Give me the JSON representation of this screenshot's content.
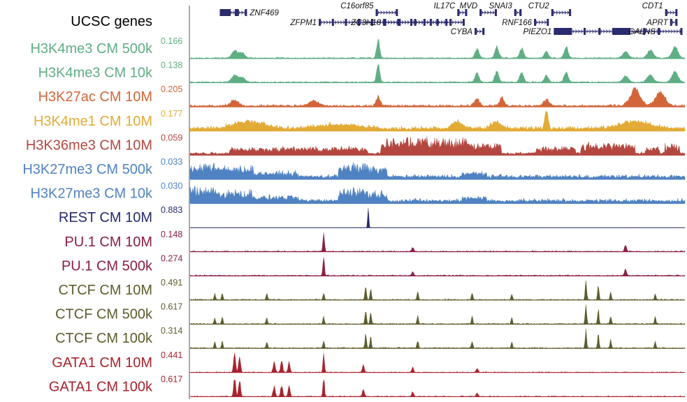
{
  "gene_track": {
    "label": "UCSC genes",
    "color": "#2a2a6e",
    "genes": [
      {
        "name": "ZNF469",
        "start": 0.06,
        "end": 0.115,
        "row": 0,
        "thick": true
      },
      {
        "name": "ZFPM1",
        "start": 0.26,
        "end": 0.555,
        "row": 1,
        "thick": false
      },
      {
        "name": "C16orf85",
        "start": 0.375,
        "end": 0.42,
        "row": 0,
        "thick": false
      },
      {
        "name": "ZC3H18",
        "start": 0.39,
        "end": 0.52,
        "row": 1,
        "thick": false
      },
      {
        "name": "IL17C",
        "start": 0.54,
        "end": 0.56,
        "row": 0,
        "thick": false
      },
      {
        "name": "CYBA",
        "start": 0.575,
        "end": 0.595,
        "row": 2,
        "thick": false
      },
      {
        "name": "MVD",
        "start": 0.585,
        "end": 0.62,
        "row": 0,
        "thick": false
      },
      {
        "name": "SNAI3",
        "start": 0.655,
        "end": 0.67,
        "row": 0,
        "thick": false
      },
      {
        "name": "RNF166",
        "start": 0.695,
        "end": 0.725,
        "row": 1,
        "thick": false
      },
      {
        "name": "CTU2",
        "start": 0.73,
        "end": 0.77,
        "row": 0,
        "thick": false
      },
      {
        "name": "PIEZO1",
        "start": 0.735,
        "end": 0.95,
        "row": 2,
        "thick": true
      },
      {
        "name": "CDT1",
        "start": 0.96,
        "end": 0.985,
        "row": 0,
        "thick": false
      },
      {
        "name": "APRT",
        "start": 0.97,
        "end": 0.985,
        "row": 1,
        "thick": false
      },
      {
        "name": "GALNS",
        "start": 0.945,
        "end": 0.995,
        "row": 2,
        "thick": false
      }
    ]
  },
  "tracks": [
    {
      "label": "H3K4me3 CM 500k",
      "max": "0.166",
      "color": "#5fae84",
      "profile": "h3k4me3"
    },
    {
      "label": "H3K4me3 CM 10k",
      "max": "0.138",
      "color": "#5fae84",
      "profile": "h3k4me3"
    },
    {
      "label": "H3K27ac CM 10M",
      "max": "0.205",
      "color": "#d2663a",
      "profile": "h3k27ac"
    },
    {
      "label": "H3K4me1 CM 10M",
      "max": "0.177",
      "color": "#e2ab36",
      "profile": "h3k4me1"
    },
    {
      "label": "H3K36me3 CM 10M",
      "max": "0.059",
      "color": "#b3473f",
      "profile": "h3k36me3"
    },
    {
      "label": "H3K27me3 CM 500k",
      "max": "0.033",
      "color": "#4f82c2",
      "profile": "h3k27me3"
    },
    {
      "label": "H3K27me3 CM 10k",
      "max": "0.030",
      "color": "#4f82c2",
      "profile": "h3k27me3"
    },
    {
      "label": "REST CM 10M",
      "max": "0.883",
      "color": "#262a6b",
      "profile": "rest"
    },
    {
      "label": "PU.1 CM 10M",
      "max": "0.148",
      "color": "#8a1f3f",
      "profile": "pu1"
    },
    {
      "label": "PU.1 CM 500k",
      "max": "0.274",
      "color": "#8a1f3f",
      "profile": "pu1"
    },
    {
      "label": "CTCF CM 10M",
      "max": "0.491",
      "color": "#5e5c2c",
      "profile": "ctcf"
    },
    {
      "label": "CTCF CM 500k",
      "max": "0.617",
      "color": "#5e5c2c",
      "profile": "ctcf"
    },
    {
      "label": "CTCF CM 100k",
      "max": "0.314",
      "color": "#5e5c2c",
      "profile": "ctcf"
    },
    {
      "label": "GATA1 CM 10M",
      "max": "0.441",
      "color": "#a8232d",
      "profile": "gata1"
    },
    {
      "label": "GATA1 CM 100k",
      "max": "0.617",
      "color": "#a8232d",
      "profile": "gata1"
    }
  ]
}
